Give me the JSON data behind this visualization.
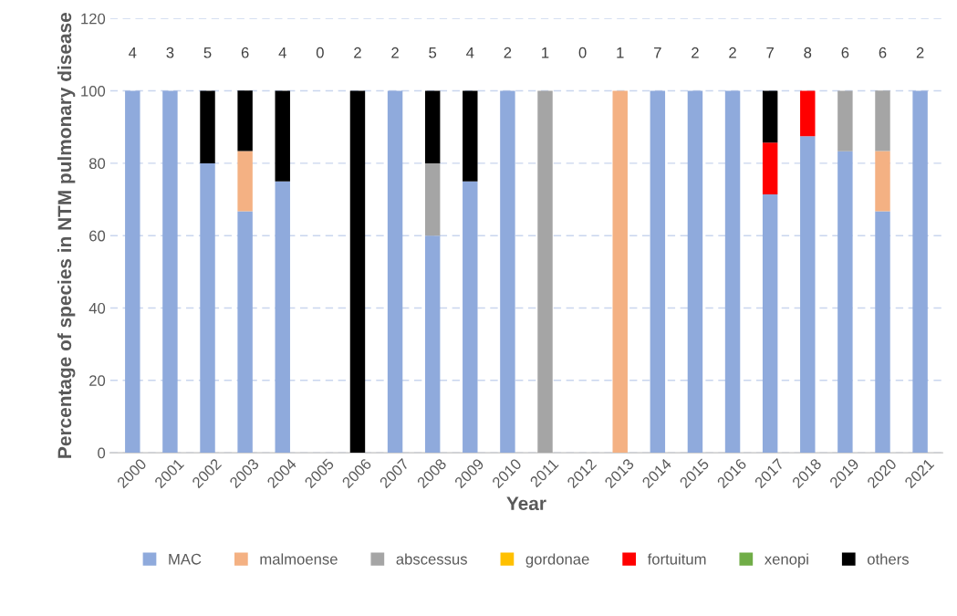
{
  "chart_data": {
    "type": "bar",
    "stacked": true,
    "xlabel": "Year",
    "ylabel": "Percentage of species in NTM pulmonary disease",
    "categories": [
      "2000",
      "2001",
      "2002",
      "2003",
      "2004",
      "2005",
      "2006",
      "2007",
      "2008",
      "2009",
      "2010",
      "2011",
      "2012",
      "2013",
      "2014",
      "2015",
      "2016",
      "2017",
      "2018",
      "2019",
      "2020",
      "2021"
    ],
    "series": [
      {
        "name": "MAC",
        "color": "#8faadc",
        "values": [
          100,
          100,
          80,
          66.7,
          75,
          0,
          0,
          100,
          60,
          75,
          100,
          0,
          0,
          0,
          100,
          100,
          100,
          71.4,
          87.5,
          83.3,
          66.7,
          100
        ]
      },
      {
        "name": "malmoense",
        "color": "#f4b183",
        "values": [
          0,
          0,
          0,
          16.7,
          0,
          0,
          0,
          0,
          0,
          0,
          0,
          0,
          0,
          100,
          0,
          0,
          0,
          0,
          0,
          0,
          16.7,
          0
        ]
      },
      {
        "name": "abscessus",
        "color": "#a5a5a5",
        "values": [
          0,
          0,
          0,
          0,
          0,
          0,
          0,
          0,
          20,
          0,
          0,
          100,
          0,
          0,
          0,
          0,
          0,
          0,
          0,
          16.7,
          16.7,
          0
        ]
      },
      {
        "name": "gordonae",
        "color": "#ffc000",
        "values": [
          0,
          0,
          0,
          0,
          0,
          0,
          0,
          0,
          0,
          0,
          0,
          0,
          0,
          0,
          0,
          0,
          0,
          0,
          0,
          0,
          0,
          0
        ]
      },
      {
        "name": "fortuitum",
        "color": "#ff0000",
        "values": [
          0,
          0,
          0,
          0,
          0,
          0,
          0,
          0,
          0,
          0,
          0,
          0,
          0,
          0,
          0,
          0,
          0,
          14.3,
          12.5,
          0,
          0,
          0
        ]
      },
      {
        "name": "xenopi",
        "color": "#70ad47",
        "values": [
          0,
          0,
          0,
          0,
          0,
          0,
          0,
          0,
          0,
          0,
          0,
          0,
          0,
          0,
          0,
          0,
          0,
          0,
          0,
          0,
          0,
          0
        ]
      },
      {
        "name": "others",
        "color": "#000000",
        "values": [
          0,
          0,
          20,
          16.7,
          25,
          0,
          100,
          0,
          20,
          25,
          0,
          0,
          0,
          0,
          0,
          0,
          0,
          14.3,
          0,
          0,
          0,
          0
        ]
      }
    ],
    "annotations": [
      "4",
      "3",
      "5",
      "6",
      "4",
      "0",
      "2",
      "2",
      "5",
      "4",
      "2",
      "1",
      "0",
      "1",
      "7",
      "2",
      "2",
      "7",
      "8",
      "6",
      "6",
      "2"
    ],
    "ylim": [
      0,
      120
    ],
    "yticks": [
      0,
      20,
      40,
      60,
      80,
      100,
      120
    ],
    "grid": "y",
    "legend": "bottom"
  }
}
